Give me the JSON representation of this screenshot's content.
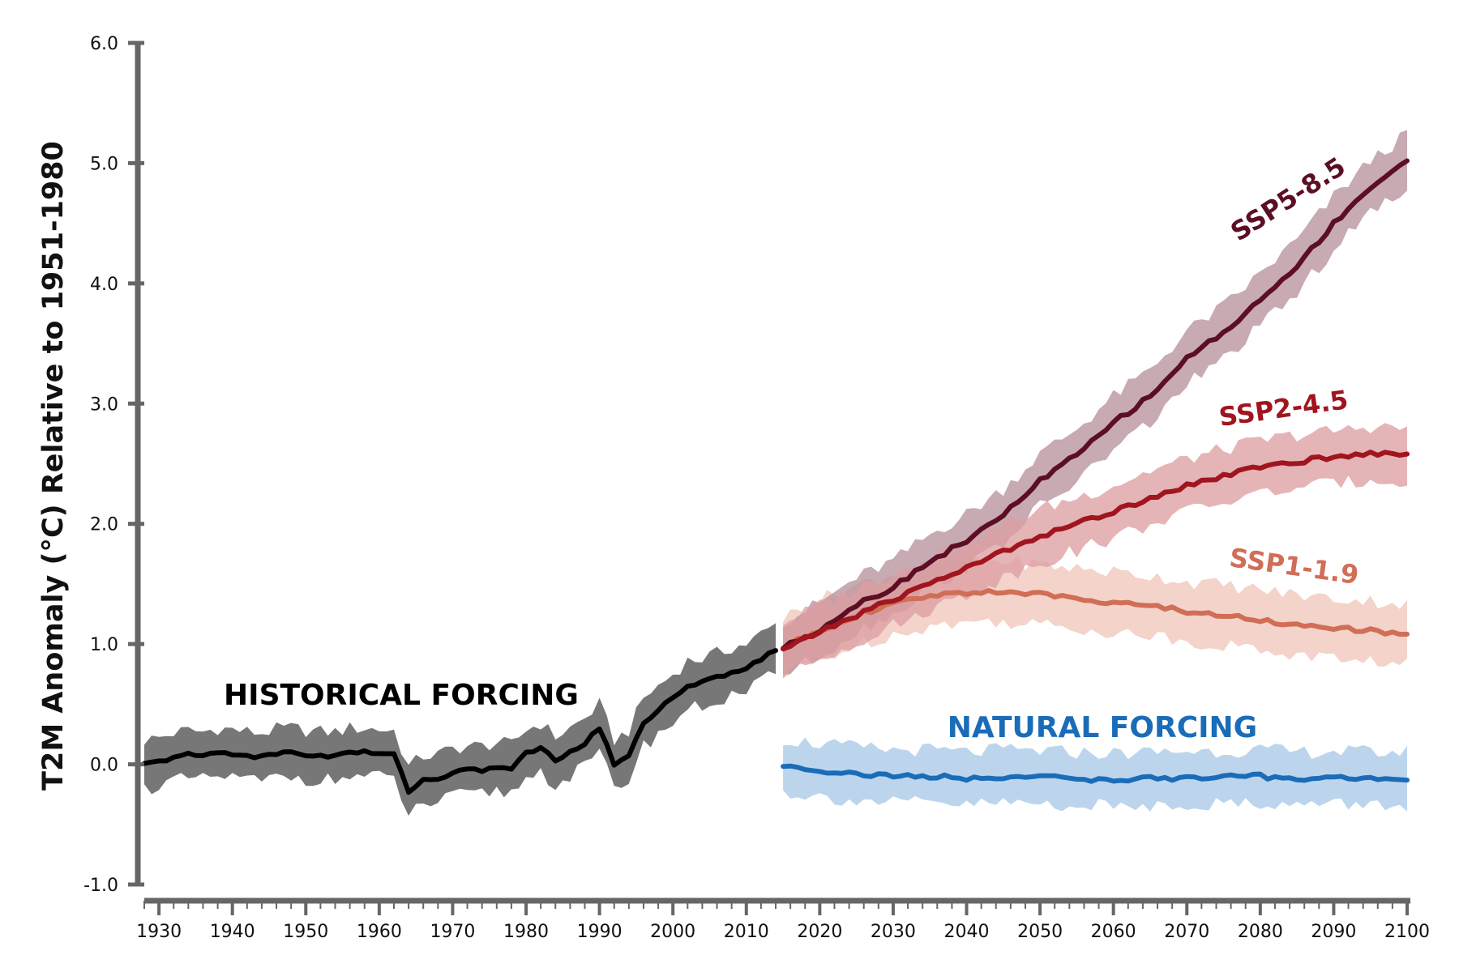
{
  "chart_data": {
    "type": "line",
    "title": "",
    "xlabel": "",
    "ylabel": "T2M Anomaly (°C) Relative to 1951-1980",
    "xlim": [
      1928,
      2100
    ],
    "ylim": [
      -1.0,
      6.0
    ],
    "x_ticks": [
      "1930",
      "1940",
      "1950",
      "1960",
      "1970",
      "1980",
      "1990",
      "2000",
      "2010",
      "2020",
      "2030",
      "2040",
      "2050",
      "2060",
      "2070",
      "2080",
      "2090",
      "2100"
    ],
    "y_ticks": [
      "6.0",
      "5.0",
      "4.0",
      "3.0",
      "2.0",
      "1.0",
      "0.0",
      "-1.0"
    ],
    "grid": false,
    "legend": "inline labels",
    "series": [
      {
        "name": "HISTORICAL FORCING",
        "color": "#000000",
        "band_color": "#777777",
        "x": [
          1928,
          1930,
          1932,
          1934,
          1936,
          1938,
          1940,
          1942,
          1944,
          1946,
          1948,
          1950,
          1952,
          1954,
          1956,
          1958,
          1960,
          1962,
          1964,
          1966,
          1968,
          1970,
          1972,
          1974,
          1976,
          1978,
          1980,
          1982,
          1984,
          1986,
          1988,
          1990,
          1992,
          1994,
          1996,
          1998,
          2000,
          2002,
          2004,
          2006,
          2008,
          2010,
          2012,
          2014
        ],
        "y": [
          0.0,
          0.02,
          0.06,
          0.08,
          0.07,
          0.1,
          0.09,
          0.07,
          0.06,
          0.09,
          0.1,
          0.08,
          0.07,
          0.07,
          0.1,
          0.1,
          0.09,
          0.08,
          -0.22,
          -0.13,
          -0.12,
          -0.07,
          -0.05,
          -0.05,
          -0.02,
          -0.04,
          0.09,
          0.14,
          0.03,
          0.1,
          0.18,
          0.3,
          0.0,
          0.08,
          0.35,
          0.45,
          0.55,
          0.66,
          0.68,
          0.72,
          0.77,
          0.8,
          0.88,
          0.96
        ],
        "band": 0.2
      },
      {
        "name": "SSP5-8.5",
        "color": "#5c0f24",
        "band_color": "#b8929c",
        "x": [
          2015,
          2020,
          2025,
          2030,
          2035,
          2040,
          2045,
          2050,
          2055,
          2060,
          2065,
          2070,
          2075,
          2080,
          2085,
          2090,
          2095,
          2100
        ],
        "y": [
          0.97,
          1.12,
          1.33,
          1.47,
          1.69,
          1.86,
          2.07,
          2.36,
          2.57,
          2.84,
          3.06,
          3.38,
          3.59,
          3.86,
          4.14,
          4.5,
          4.8,
          5.02
        ],
        "band": 0.22
      },
      {
        "name": "SSP2-4.5",
        "color": "#a1151e",
        "band_color": "#dc9fa3",
        "x": [
          2015,
          2020,
          2025,
          2030,
          2035,
          2040,
          2045,
          2050,
          2055,
          2060,
          2065,
          2070,
          2075,
          2080,
          2085,
          2090,
          2095,
          2100
        ],
        "y": [
          0.96,
          1.1,
          1.24,
          1.37,
          1.51,
          1.63,
          1.77,
          1.9,
          2.0,
          2.1,
          2.22,
          2.32,
          2.4,
          2.47,
          2.52,
          2.55,
          2.59,
          2.58
        ],
        "band": 0.22
      },
      {
        "name": "SSP1-1.9",
        "color": "#d06e56",
        "band_color": "#f0c7bb",
        "x": [
          2015,
          2020,
          2025,
          2030,
          2035,
          2040,
          2045,
          2050,
          2055,
          2060,
          2065,
          2070,
          2075,
          2080,
          2085,
          2090,
          2095,
          2100
        ],
        "y": [
          0.97,
          1.12,
          1.24,
          1.33,
          1.4,
          1.43,
          1.44,
          1.41,
          1.38,
          1.35,
          1.32,
          1.27,
          1.24,
          1.2,
          1.16,
          1.13,
          1.11,
          1.08
        ],
        "band": 0.25
      },
      {
        "name": "NATURAL FORCING",
        "color": "#1b6cb8",
        "band_color": "#a9c9e8",
        "x": [
          2015,
          2020,
          2025,
          2030,
          2035,
          2040,
          2045,
          2050,
          2055,
          2060,
          2065,
          2070,
          2075,
          2080,
          2085,
          2090,
          2095,
          2100
        ],
        "y": [
          -0.01,
          -0.05,
          -0.08,
          -0.1,
          -0.1,
          -0.12,
          -0.1,
          -0.11,
          -0.12,
          -0.13,
          -0.12,
          -0.11,
          -0.11,
          -0.1,
          -0.12,
          -0.11,
          -0.12,
          -0.12
        ],
        "band": 0.22
      }
    ]
  }
}
